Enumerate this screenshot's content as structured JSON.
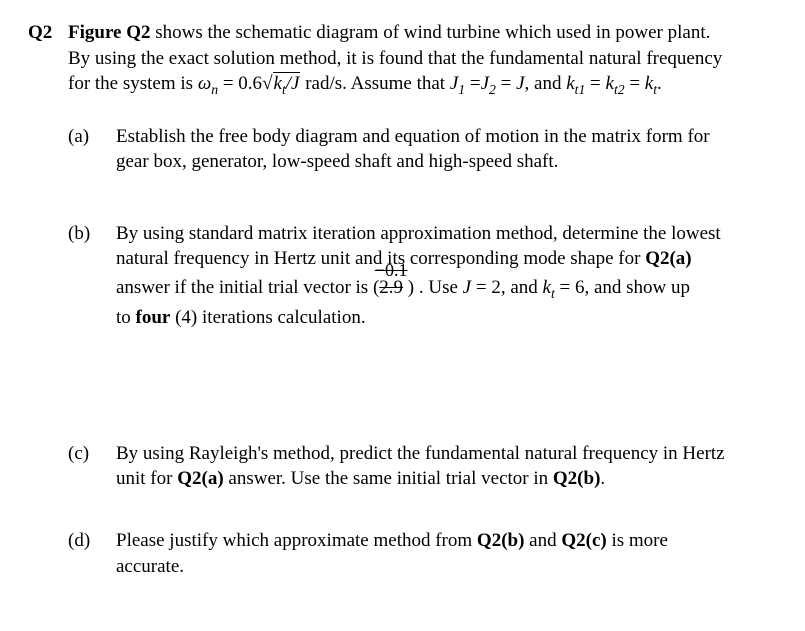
{
  "question_label": "Q2",
  "intro_l1_a": "Figure Q2",
  "intro_l1_b": " shows the schematic diagram of wind turbine which used in power plant.",
  "intro_l2": "By using the exact solution method, it is found that the fundamental natural frequency",
  "intro_l3_a": "for the system is ",
  "omega_n": "ω",
  "sub_n": "n",
  "eq1_mid": " = 0.6",
  "rad_inner_a": "k",
  "rad_inner_b": "t",
  "rad_inner_c": "/J",
  "eq1_tail": " rad/s. Assume that ",
  "J1": "J",
  "s1": "1",
  "eqJ": " =",
  "J2": "J",
  "s2": "2",
  "eqJ2": " = ",
  "Jv": "J",
  "tail_and": ", and ",
  "kt": "k",
  "tsub": "t1",
  "eqk": " = ",
  "kt2": "k",
  "tsub2": "t2",
  "eqk2": " = ",
  "ktf": "k",
  "tsubf": "t",
  "period": ".",
  "parts": {
    "a": {
      "label": "(a)",
      "l1": "Establish the free body diagram and equation of motion in the matrix form for",
      "l2": "gear box, generator, low-speed shaft and high-speed shaft."
    },
    "b": {
      "label": "(b)",
      "l1": "By using standard matrix iteration approximation method, determine the lowest",
      "l2a": "natural frequency in Hertz unit and its corresponding mode shape for ",
      "l2b": "Q2(a)",
      "l3a": "answer if the initial trial vector is ",
      "vec_top": "−0.1",
      "vec_bot": "2.9",
      "l3b": " . Use ",
      "Jeq": "J",
      "l3c": " = 2, and ",
      "kteq": "k",
      "ktsub": "t",
      "l3d": " = 6, and show up",
      "l4a": "to ",
      "l4b": "four",
      "l4c": " (4) iterations calculation."
    },
    "c": {
      "label": "(c)",
      "l1": "By using Rayleigh's method, predict the fundamental natural frequency in Hertz",
      "l2a": "unit for ",
      "l2b": "Q2(a)",
      "l2c": " answer. Use the same initial trial vector in ",
      "l2d": "Q2(b)",
      "l2e": "."
    },
    "d": {
      "label": "(d)",
      "l1a": "Please justify which approximate method from ",
      "l1b": "Q2(b)",
      "l1c": " and ",
      "l1d": "Q2(c)",
      "l1e": " is more",
      "l2": "accurate."
    }
  }
}
